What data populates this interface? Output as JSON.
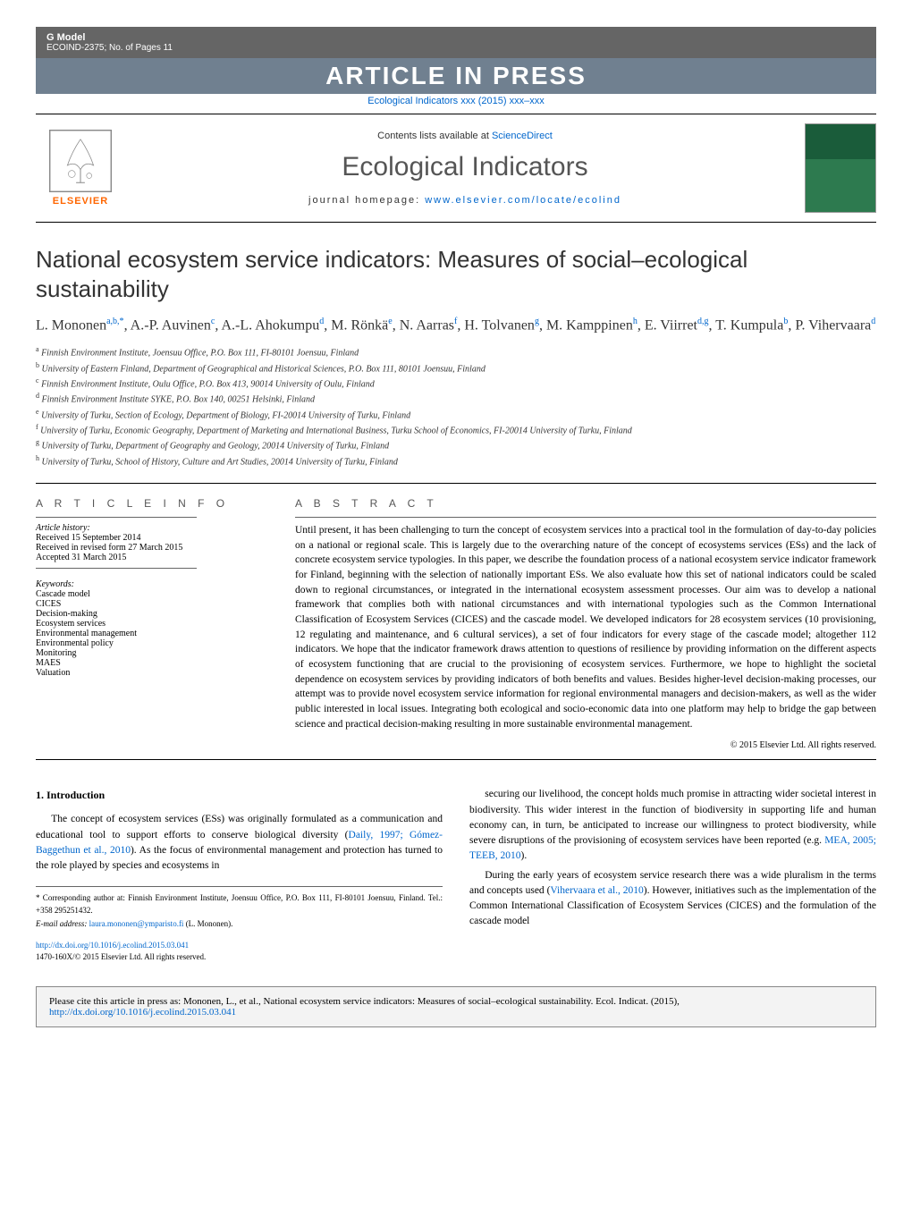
{
  "header": {
    "gmodel": "G Model",
    "docid": "ECOIND-2375;   No. of Pages 11",
    "press_banner": "ARTICLE IN PRESS",
    "journal_ref": "Ecological Indicators xxx (2015) xxx–xxx"
  },
  "masthead": {
    "contents": "Contents lists available at ",
    "contents_link": "ScienceDirect",
    "journal_title": "Ecological Indicators",
    "homepage_label": "journal homepage: ",
    "homepage_url": "www.elsevier.com/locate/ecolind",
    "publisher": "ELSEVIER"
  },
  "title": "National ecosystem service indicators: Measures of social–ecological sustainability",
  "authors_html": "L. Mononen<sup>a,b,*</sup>, A.-P. Auvinen<sup>c</sup>, A.-L. Ahokumpu<sup>d</sup>, M. Rönkä<sup>e</sup>, N. Aarras<sup>f</sup>, H. Tolvanen<sup>g</sup>, M. Kamppinen<sup>h</sup>, E. Viirret<sup>d,g</sup>, T. Kumpula<sup>b</sup>, P. Vihervaara<sup>d</sup>",
  "affiliations": [
    {
      "sup": "a",
      "text": "Finnish Environment Institute, Joensuu Office, P.O. Box 111, FI-80101 Joensuu, Finland"
    },
    {
      "sup": "b",
      "text": "University of Eastern Finland, Department of Geographical and Historical Sciences, P.O. Box 111, 80101 Joensuu, Finland"
    },
    {
      "sup": "c",
      "text": "Finnish Environment Institute, Oulu Office, P.O. Box 413, 90014 University of Oulu, Finland"
    },
    {
      "sup": "d",
      "text": "Finnish Environment Institute SYKE, P.O. Box 140, 00251 Helsinki, Finland"
    },
    {
      "sup": "e",
      "text": "University of Turku, Section of Ecology, Department of Biology, FI-20014 University of Turku, Finland"
    },
    {
      "sup": "f",
      "text": "University of Turku, Economic Geography, Department of Marketing and International Business, Turku School of Economics, FI-20014 University of Turku, Finland"
    },
    {
      "sup": "g",
      "text": "University of Turku, Department of Geography and Geology, 20014 University of Turku, Finland"
    },
    {
      "sup": "h",
      "text": "University of Turku, School of History, Culture and Art Studies, 20014 University of Turku, Finland"
    }
  ],
  "info": {
    "head": "A R T I C L E   I N F O",
    "history_head": "Article history:",
    "history": [
      "Received 15 September 2014",
      "Received in revised form 27 March 2015",
      "Accepted 31 March 2015"
    ],
    "keywords_head": "Keywords:",
    "keywords": [
      "Cascade model",
      "CICES",
      "Decision-making",
      "Ecosystem services",
      "Environmental management",
      "Environmental policy",
      "Monitoring",
      "MAES",
      "Valuation"
    ]
  },
  "abstract": {
    "head": "A B S T R A C T",
    "text": "Until present, it has been challenging to turn the concept of ecosystem services into a practical tool in the formulation of day-to-day policies on a national or regional scale. This is largely due to the overarching nature of the concept of ecosystems services (ESs) and the lack of concrete ecosystem service typologies. In this paper, we describe the foundation process of a national ecosystem service indicator framework for Finland, beginning with the selection of nationally important ESs. We also evaluate how this set of national indicators could be scaled down to regional circumstances, or integrated in the international ecosystem assessment processes. Our aim was to develop a national framework that complies both with national circumstances and with international typologies such as the Common International Classification of Ecosystem Services (CICES) and the cascade model. We developed indicators for 28 ecosystem services (10 provisioning, 12 regulating and maintenance, and 6 cultural services), a set of four indicators for every stage of the cascade model; altogether 112 indicators. We hope that the indicator framework draws attention to questions of resilience by providing information on the different aspects of ecosystem functioning that are crucial to the provisioning of ecosystem services. Furthermore, we hope to highlight the societal dependence on ecosystem services by providing indicators of both benefits and values. Besides higher-level decision-making processes, our attempt was to provide novel ecosystem service information for regional environmental managers and decision-makers, as well as the wider public interested in local issues. Integrating both ecological and socio-economic data into one platform may help to bridge the gap between science and practical decision-making resulting in more sustainable environmental management.",
    "copyright": "© 2015 Elsevier Ltd. All rights reserved."
  },
  "body": {
    "section1_head": "1.  Introduction",
    "left_p1": "The concept of ecosystem services (ESs) was originally formulated as a communication and educational tool to support efforts to conserve biological diversity (",
    "left_cite1": "Daily, 1997; Gómez-Baggethun et al., 2010",
    "left_p1_end": "). As the focus of environmental management and protection has turned to the role played by species and ecosystems in",
    "right_p1": "securing our livelihood, the concept holds much promise in attracting wider societal interest in biodiversity. This wider interest in the function of biodiversity in supporting life and human economy can, in turn, be anticipated to increase our willingness to protect biodiversity, while severe disruptions of the provisioning of ecosystem services have been reported (e.g. ",
    "right_cite1": "MEA, 2005; TEEB, 2010",
    "right_p1_end": ").",
    "right_p2": "During the early years of ecosystem service research there was a wide pluralism in the terms and concepts used (",
    "right_cite2": "Vihervaara et al., 2010",
    "right_p2_end": "). However, initiatives such as the implementation of the Common International Classification of Ecosystem Services (CICES) and the formulation of the cascade model"
  },
  "footnotes": {
    "corr": "* Corresponding author at: Finnish Environment Institute, Joensuu Office, P.O. Box 111, FI-80101 Joensuu, Finland. Tel.: +358 295251432.",
    "email_label": "E-mail address: ",
    "email": "laura.mononen@ymparisto.fi",
    "email_tail": " (L. Mononen)."
  },
  "doi": {
    "url": "http://dx.doi.org/10.1016/j.ecolind.2015.03.041",
    "issn": "1470-160X/© 2015 Elsevier Ltd. All rights reserved."
  },
  "citebox": {
    "text": "Please cite this article in press as: Mononen, L., et al., National ecosystem service indicators: Measures of social–ecological sustainability. Ecol. Indicat. (2015), ",
    "url": "http://dx.doi.org/10.1016/j.ecolind.2015.03.041"
  },
  "colors": {
    "header_bg": "#656565",
    "press_bg": "#708090",
    "link": "#0066cc",
    "elsevier": "#ff6600",
    "cover_bg": "#1a5c3a"
  }
}
